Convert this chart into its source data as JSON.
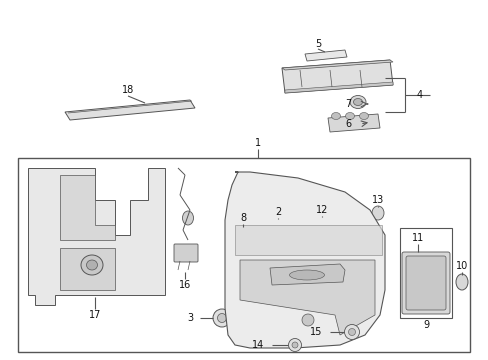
{
  "bg_color": "#ffffff",
  "line_color": "#555555",
  "text_color": "#111111",
  "fig_w": 4.89,
  "fig_h": 3.6,
  "dpi": 100
}
